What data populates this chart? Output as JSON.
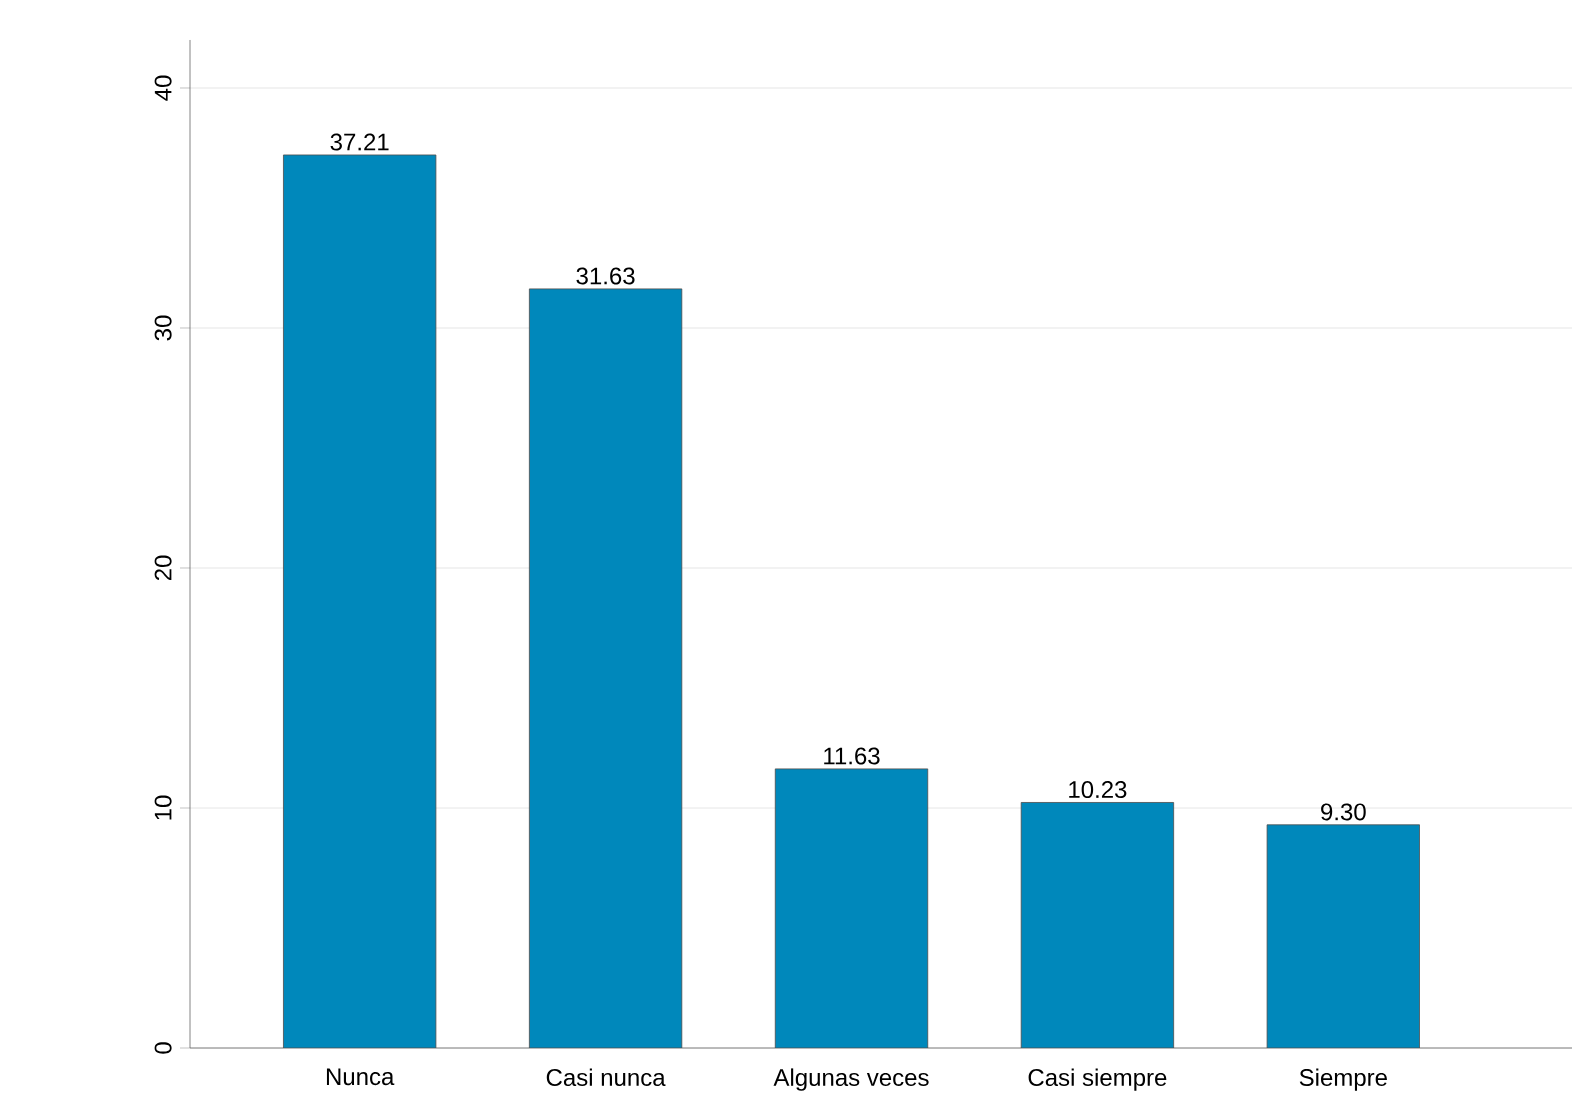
{
  "chart_data": {
    "type": "bar",
    "categories": [
      "Nunca",
      "Casi nunca",
      "Algunas veces",
      "Casi siempre",
      "Siempre"
    ],
    "values": [
      37.21,
      31.63,
      11.63,
      10.23,
      9.3
    ],
    "value_labels": [
      "37.21",
      "31.63",
      "11.63",
      "10.23",
      "9.30"
    ],
    "color": "#0088bb",
    "ylim": [
      0,
      42
    ],
    "yticks": [
      0,
      10,
      20,
      30,
      40
    ],
    "grid": "y"
  }
}
